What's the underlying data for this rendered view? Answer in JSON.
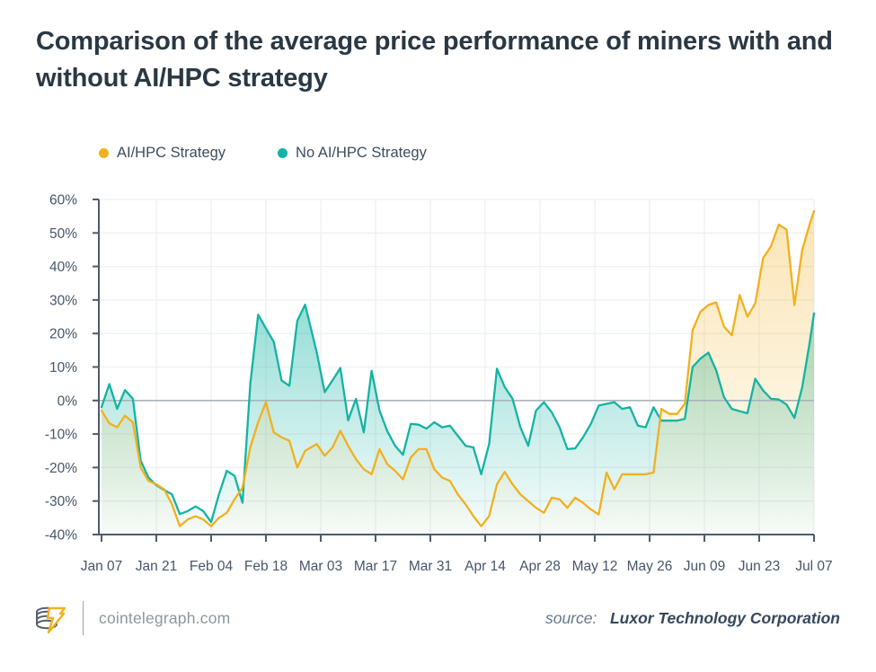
{
  "title": "Comparison of the average price performance of miners with and without AI/HPC strategy",
  "legend": [
    {
      "label": "AI/HPC Strategy",
      "color": "#F2B01F"
    },
    {
      "label": "No AI/HPC Strategy",
      "color": "#14B3A4"
    }
  ],
  "footer": {
    "site": "cointelegraph.com",
    "source_prefix": "source:",
    "source_name": "Luxor Technology Corporation"
  },
  "colors": {
    "title_text": "#2B3844",
    "axis_text": "#47566A",
    "axis_line": "#4D5C6C",
    "grid_line": "#EEF0F2",
    "zero_line": "#ABB4BB",
    "background": "#FFFFFF"
  },
  "chart_data": {
    "type": "line",
    "unit": "%",
    "ylim": [
      -40,
      60
    ],
    "y_tick_interval": 10,
    "y_tick_labels": [
      "60%",
      "50%",
      "40%",
      "30%",
      "20%",
      "10%",
      "0%",
      "-10%",
      "-20%",
      "-30%",
      "-40%"
    ],
    "x_tick_labels": [
      "Jan 07",
      "Jan 21",
      "Feb 04",
      "Feb 18",
      "Mar 03",
      "Mar 17",
      "Mar 31",
      "Apr 14",
      "Apr 28",
      "May 12",
      "May 26",
      "Jun 09",
      "Jun 23",
      "Jul 07"
    ],
    "grid": true,
    "legend_position": "top-left",
    "area_fill": true,
    "x": [
      "Jan 07",
      "Jan 09",
      "Jan 11",
      "Jan 13",
      "Jan 15",
      "Jan 17",
      "Jan 19",
      "Jan 21",
      "Jan 23",
      "Jan 25",
      "Jan 27",
      "Jan 29",
      "Jan 31",
      "Feb 02",
      "Feb 04",
      "Feb 06",
      "Feb 08",
      "Feb 10",
      "Feb 12",
      "Feb 14",
      "Feb 16",
      "Feb 18",
      "Feb 20",
      "Feb 22",
      "Feb 24",
      "Feb 26",
      "Feb 28",
      "Mar 02",
      "Mar 04",
      "Mar 06",
      "Mar 08",
      "Mar 10",
      "Mar 12",
      "Mar 14",
      "Mar 16",
      "Mar 18",
      "Mar 20",
      "Mar 22",
      "Mar 24",
      "Mar 26",
      "Mar 28",
      "Mar 30",
      "Apr 01",
      "Apr 03",
      "Apr 05",
      "Apr 07",
      "Apr 09",
      "Apr 11",
      "Apr 13",
      "Apr 15",
      "Apr 17",
      "Apr 19",
      "Apr 21",
      "Apr 23",
      "Apr 25",
      "Apr 27",
      "Apr 29",
      "May 01",
      "May 03",
      "May 05",
      "May 07",
      "May 09",
      "May 11",
      "May 13",
      "May 15",
      "May 17",
      "May 19",
      "May 21",
      "May 23",
      "May 25",
      "May 27",
      "May 29",
      "May 31",
      "Jun 02",
      "Jun 04",
      "Jun 06",
      "Jun 08",
      "Jun 10",
      "Jun 12",
      "Jun 14",
      "Jun 16",
      "Jun 18",
      "Jun 20",
      "Jun 22",
      "Jun 24",
      "Jun 26",
      "Jun 28",
      "Jun 30",
      "Jul 02",
      "Jul 04",
      "Jul 06",
      "Jul 07"
    ],
    "series": [
      {
        "name": "AI/HPC Strategy",
        "color": "#F2B01F",
        "values": [
          -3,
          -6.8,
          -8,
          -4.5,
          -6.5,
          -20,
          -24,
          -25,
          -26.5,
          -31,
          -37.5,
          -35.5,
          -34.5,
          -35.5,
          -37.5,
          -35,
          -33.5,
          -29.5,
          -26,
          -14,
          -6.5,
          -0.5,
          -9.5,
          -11,
          -12,
          -20,
          -15,
          -13,
          -16.5,
          -14,
          -9,
          -13.5,
          -17.5,
          -20.5,
          -22,
          -14.5,
          -19,
          -21,
          -23.5,
          -17,
          -14.5,
          -14.5,
          -20.5,
          -23,
          -24,
          -28,
          -31,
          -34.5,
          -37.5,
          -34.5,
          -25,
          -21.3,
          -25,
          -28,
          -30,
          -32,
          -33.5,
          -29,
          -29.5,
          -32,
          -29,
          -30.5,
          -32.5,
          -34,
          -21.5,
          -26.5,
          -22,
          -22,
          -22,
          -22,
          -21.5,
          -2.5,
          -4,
          -4,
          -1,
          21,
          26.5,
          28.5,
          29.3,
          22,
          19.5,
          31.5,
          25,
          29,
          42.5,
          46,
          52.5,
          51,
          28.5,
          45,
          53,
          56.5
        ]
      },
      {
        "name": "No AI/HPC Strategy",
        "color": "#14B3A4",
        "values": [
          -2,
          4.9,
          -2.5,
          3.1,
          0.5,
          -18,
          -23,
          -25.3,
          -26.7,
          -28,
          -33.9,
          -33,
          -31.6,
          -33,
          -36.3,
          -28,
          -21,
          -22.5,
          -30.5,
          5,
          25.6,
          21.5,
          17.5,
          6,
          4.4,
          23.8,
          28.6,
          14.3,
          2.5,
          6,
          9.7,
          -5.9,
          0.5,
          -9.5,
          8.9,
          -3,
          -9.2,
          -13.5,
          -16.2,
          -7,
          -7.2,
          -8.4,
          -6.5,
          -8,
          -7.5,
          -10.5,
          -13.5,
          -14,
          -22,
          -13,
          9.5,
          4,
          0.5,
          -8,
          -13.5,
          -3,
          -0.5,
          -3.5,
          -8,
          -14.5,
          -14.3,
          -11,
          -7,
          -1.5,
          -1,
          -0.5,
          -2.5,
          -2,
          -7.5,
          -8,
          -2,
          -6,
          -6,
          -6,
          -5.5,
          10,
          12.5,
          14.3,
          9,
          1,
          -2.5,
          -3.2,
          -3.8,
          6.5,
          3,
          0.5,
          0.3,
          -1.2,
          -5.2,
          4,
          18,
          26
        ]
      }
    ]
  }
}
